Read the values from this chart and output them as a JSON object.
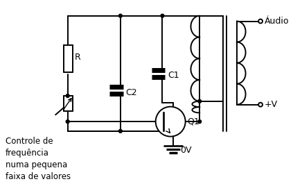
{
  "bg_color": "#ffffff",
  "line_color": "#000000",
  "label_audio": "Áudio",
  "label_plus_v": "+V",
  "label_0v": "0V",
  "label_q1": "Q1",
  "label_c1": "C1",
  "label_c2": "C2",
  "label_r": "R",
  "label_control": "Controle de\nfrequência\nnuma pequena\nfaixa de valores",
  "fig_width": 4.23,
  "fig_height": 2.78,
  "dpi": 100
}
